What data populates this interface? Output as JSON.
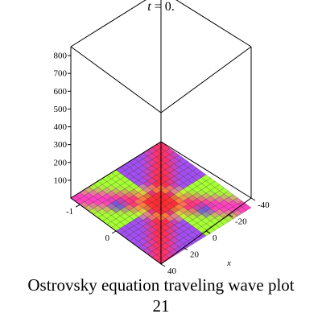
{
  "chart_data": {
    "type": "surface3d",
    "title_var": "t",
    "title_eq": "=",
    "title_val": "0.",
    "caption_line1": "Ostrovsky equation  traveling wave plot",
    "caption_line2": "21",
    "axes": {
      "z": {
        "ticks": [
          "100",
          "200",
          "300",
          "400",
          "500",
          "600",
          "700",
          "800"
        ],
        "range": [
          0,
          850
        ]
      },
      "y": {
        "ticks": [
          "-1",
          "0"
        ]
      },
      "x": {
        "label": "x",
        "ticks": [
          "-40",
          "-20",
          "0",
          "20",
          "40"
        ],
        "range": [
          -40,
          40
        ]
      }
    },
    "surface": {
      "grid_size": 20,
      "colors": {
        "background": "#a24ff0",
        "low": "#8d3cf5",
        "mid": "#a7ff35",
        "ridge": "#ff2a2e",
        "peak": "#ff3fc1",
        "accent": "#ffee40",
        "blue": "#3a5cf5"
      }
    }
  }
}
